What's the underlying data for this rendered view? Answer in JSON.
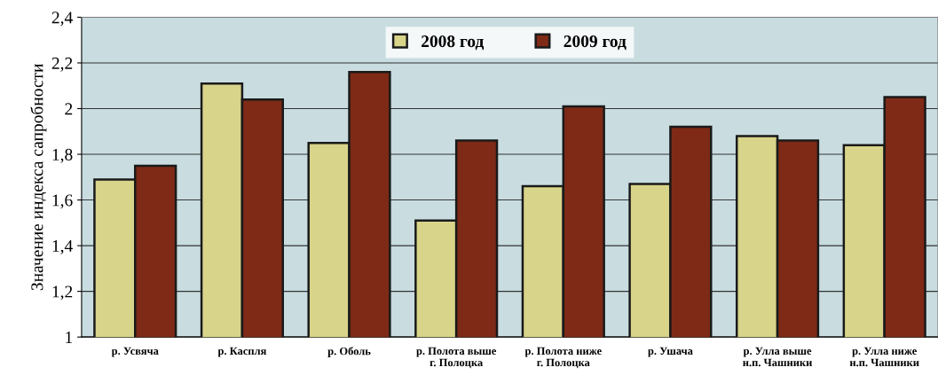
{
  "chart_data": {
    "type": "bar",
    "ylabel": "Значение индекса сапробности",
    "categories": [
      "р. Усвяча",
      "р. Каспля",
      "р. Оболь",
      "р. Полота выше\nг. Полоцка",
      "р. Полота ниже\nг. Полоцка",
      "р. Ушача",
      "р. Улла выше\nн.п. Чашники",
      "р. Улла ниже\nн.п. Чашники"
    ],
    "series": [
      {
        "name": "2008 год",
        "color": "#d8d48a",
        "values": [
          1.69,
          2.11,
          1.85,
          1.51,
          1.66,
          1.67,
          1.88,
          1.84
        ]
      },
      {
        "name": "2009 год",
        "color": "#7e2a16",
        "values": [
          1.75,
          2.04,
          2.16,
          1.86,
          2.01,
          1.92,
          1.86,
          2.05
        ]
      }
    ],
    "ylim": [
      1,
      2.4
    ],
    "yticks": [
      {
        "value": 1,
        "label": "1"
      },
      {
        "value": 1.2,
        "label": "1,2"
      },
      {
        "value": 1.4,
        "label": "1,4"
      },
      {
        "value": 1.6,
        "label": "1,6"
      },
      {
        "value": 1.8,
        "label": "1,8"
      },
      {
        "value": 2,
        "label": "2"
      },
      {
        "value": 2.2,
        "label": "2,2"
      },
      {
        "value": 2.4,
        "label": "2,4"
      }
    ],
    "grid": "y",
    "legend": "top"
  }
}
